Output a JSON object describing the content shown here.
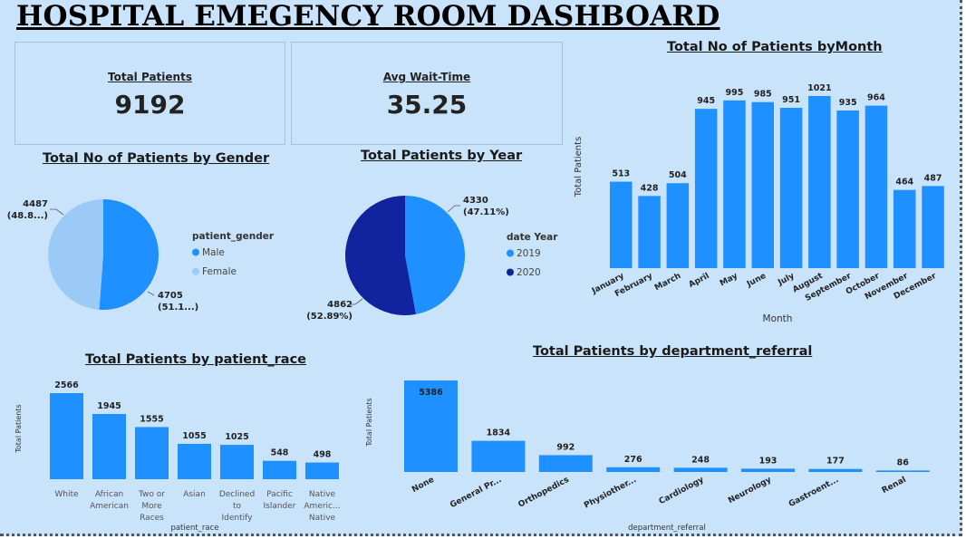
{
  "dashboard_title": "HOSPITAL EMEGENCY ROOM DASHBOARD",
  "kpis": {
    "total_patients": {
      "label": "Total Patients",
      "value": "9192"
    },
    "avg_wait": {
      "label": "Avg Wait-Time",
      "value": "35.25"
    }
  },
  "colors": {
    "primary": "#1e90ff",
    "light": "#9ccaf7",
    "dark": "#12239e",
    "background": "#c9e3fb"
  },
  "chart_data": [
    {
      "id": "gender",
      "type": "pie",
      "title": "Total No of Patients by Gender",
      "legend_title": "patient_gender",
      "slices": [
        {
          "name": "Male",
          "value": 4705,
          "label": "4705",
          "pct_label": "(51.1...)"
        },
        {
          "name": "Female",
          "value": 4487,
          "label": "4487",
          "pct_label": "(48.8...)"
        }
      ]
    },
    {
      "id": "year",
      "type": "pie",
      "title": "Total Patients by Year",
      "legend_title": "date Year",
      "slices": [
        {
          "name": "2019",
          "value": 4330,
          "label": "4330",
          "pct_label": "(47.11%)"
        },
        {
          "name": "2020",
          "value": 4862,
          "label": "4862",
          "pct_label": "(52.89%)"
        }
      ]
    },
    {
      "id": "month",
      "type": "bar",
      "title": "Total No of Patients byMonth",
      "xlabel": "Month",
      "ylabel": "Total Patients",
      "categories": [
        "January",
        "February",
        "March",
        "April",
        "May",
        "June",
        "July",
        "August",
        "September",
        "October",
        "November",
        "December"
      ],
      "values": [
        513,
        428,
        504,
        945,
        995,
        985,
        951,
        1021,
        935,
        964,
        464,
        487
      ],
      "ylim": [
        0,
        1021
      ]
    },
    {
      "id": "race",
      "type": "bar",
      "title": "Total Patients by patient_race",
      "xlabel": "patient_race",
      "ylabel": "Total Patients",
      "categories": [
        [
          "White"
        ],
        [
          "African",
          "American"
        ],
        [
          "Two or",
          "More",
          "Races"
        ],
        [
          "Asian"
        ],
        [
          "Declined",
          "to",
          "Identify"
        ],
        [
          "Pacific",
          "Islander"
        ],
        [
          "Native",
          "Americ...",
          "Native"
        ]
      ],
      "values": [
        2566,
        1945,
        1555,
        1055,
        1025,
        548,
        498
      ],
      "ylim": [
        0,
        2566
      ]
    },
    {
      "id": "dept",
      "type": "bar",
      "title": "Total Patients by department_referral",
      "xlabel": "department_referral",
      "ylabel": "Total Patients",
      "categories": [
        "None",
        "General Pr...",
        "Orthopedics",
        "Physiother...",
        "Cardiology",
        "Neurology",
        "Gastroent...",
        "Renal"
      ],
      "values": [
        5386,
        1834,
        992,
        276,
        248,
        193,
        177,
        86
      ],
      "ylim": [
        0,
        5386
      ]
    }
  ]
}
